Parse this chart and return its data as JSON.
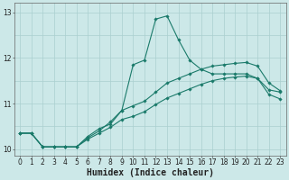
{
  "xlabel": "Humidex (Indice chaleur)",
  "bg_color": "#cce8e8",
  "line_color": "#1a7a6a",
  "xlim": [
    -0.5,
    23.5
  ],
  "ylim": [
    9.85,
    13.2
  ],
  "x_ticks": [
    0,
    1,
    2,
    3,
    4,
    5,
    6,
    7,
    8,
    9,
    10,
    11,
    12,
    13,
    14,
    15,
    16,
    17,
    18,
    19,
    20,
    21,
    22,
    23
  ],
  "y_ticks": [
    10,
    11,
    12,
    13
  ],
  "line1_y": [
    10.35,
    10.35,
    10.05,
    10.05,
    10.05,
    10.05,
    10.28,
    10.45,
    10.55,
    10.85,
    11.85,
    11.95,
    12.85,
    12.92,
    12.4,
    11.95,
    11.75,
    11.65,
    11.65,
    11.65,
    11.65,
    11.55,
    11.3,
    11.25
  ],
  "line2_y": [
    10.35,
    10.35,
    10.05,
    10.05,
    10.05,
    10.05,
    10.25,
    10.4,
    10.6,
    10.85,
    10.95,
    11.05,
    11.25,
    11.45,
    11.55,
    11.65,
    11.75,
    11.82,
    11.85,
    11.88,
    11.9,
    11.82,
    11.45,
    11.28
  ],
  "line3_y": [
    10.35,
    10.35,
    10.05,
    10.05,
    10.05,
    10.05,
    10.22,
    10.35,
    10.48,
    10.65,
    10.72,
    10.82,
    10.98,
    11.12,
    11.22,
    11.32,
    11.42,
    11.5,
    11.55,
    11.58,
    11.6,
    11.55,
    11.2,
    11.1
  ],
  "grid_color": "#aacfcf",
  "marker": "D",
  "marker_size": 1.8,
  "line_width": 0.8,
  "tick_fontsize": 5.5,
  "label_fontsize": 7.0
}
